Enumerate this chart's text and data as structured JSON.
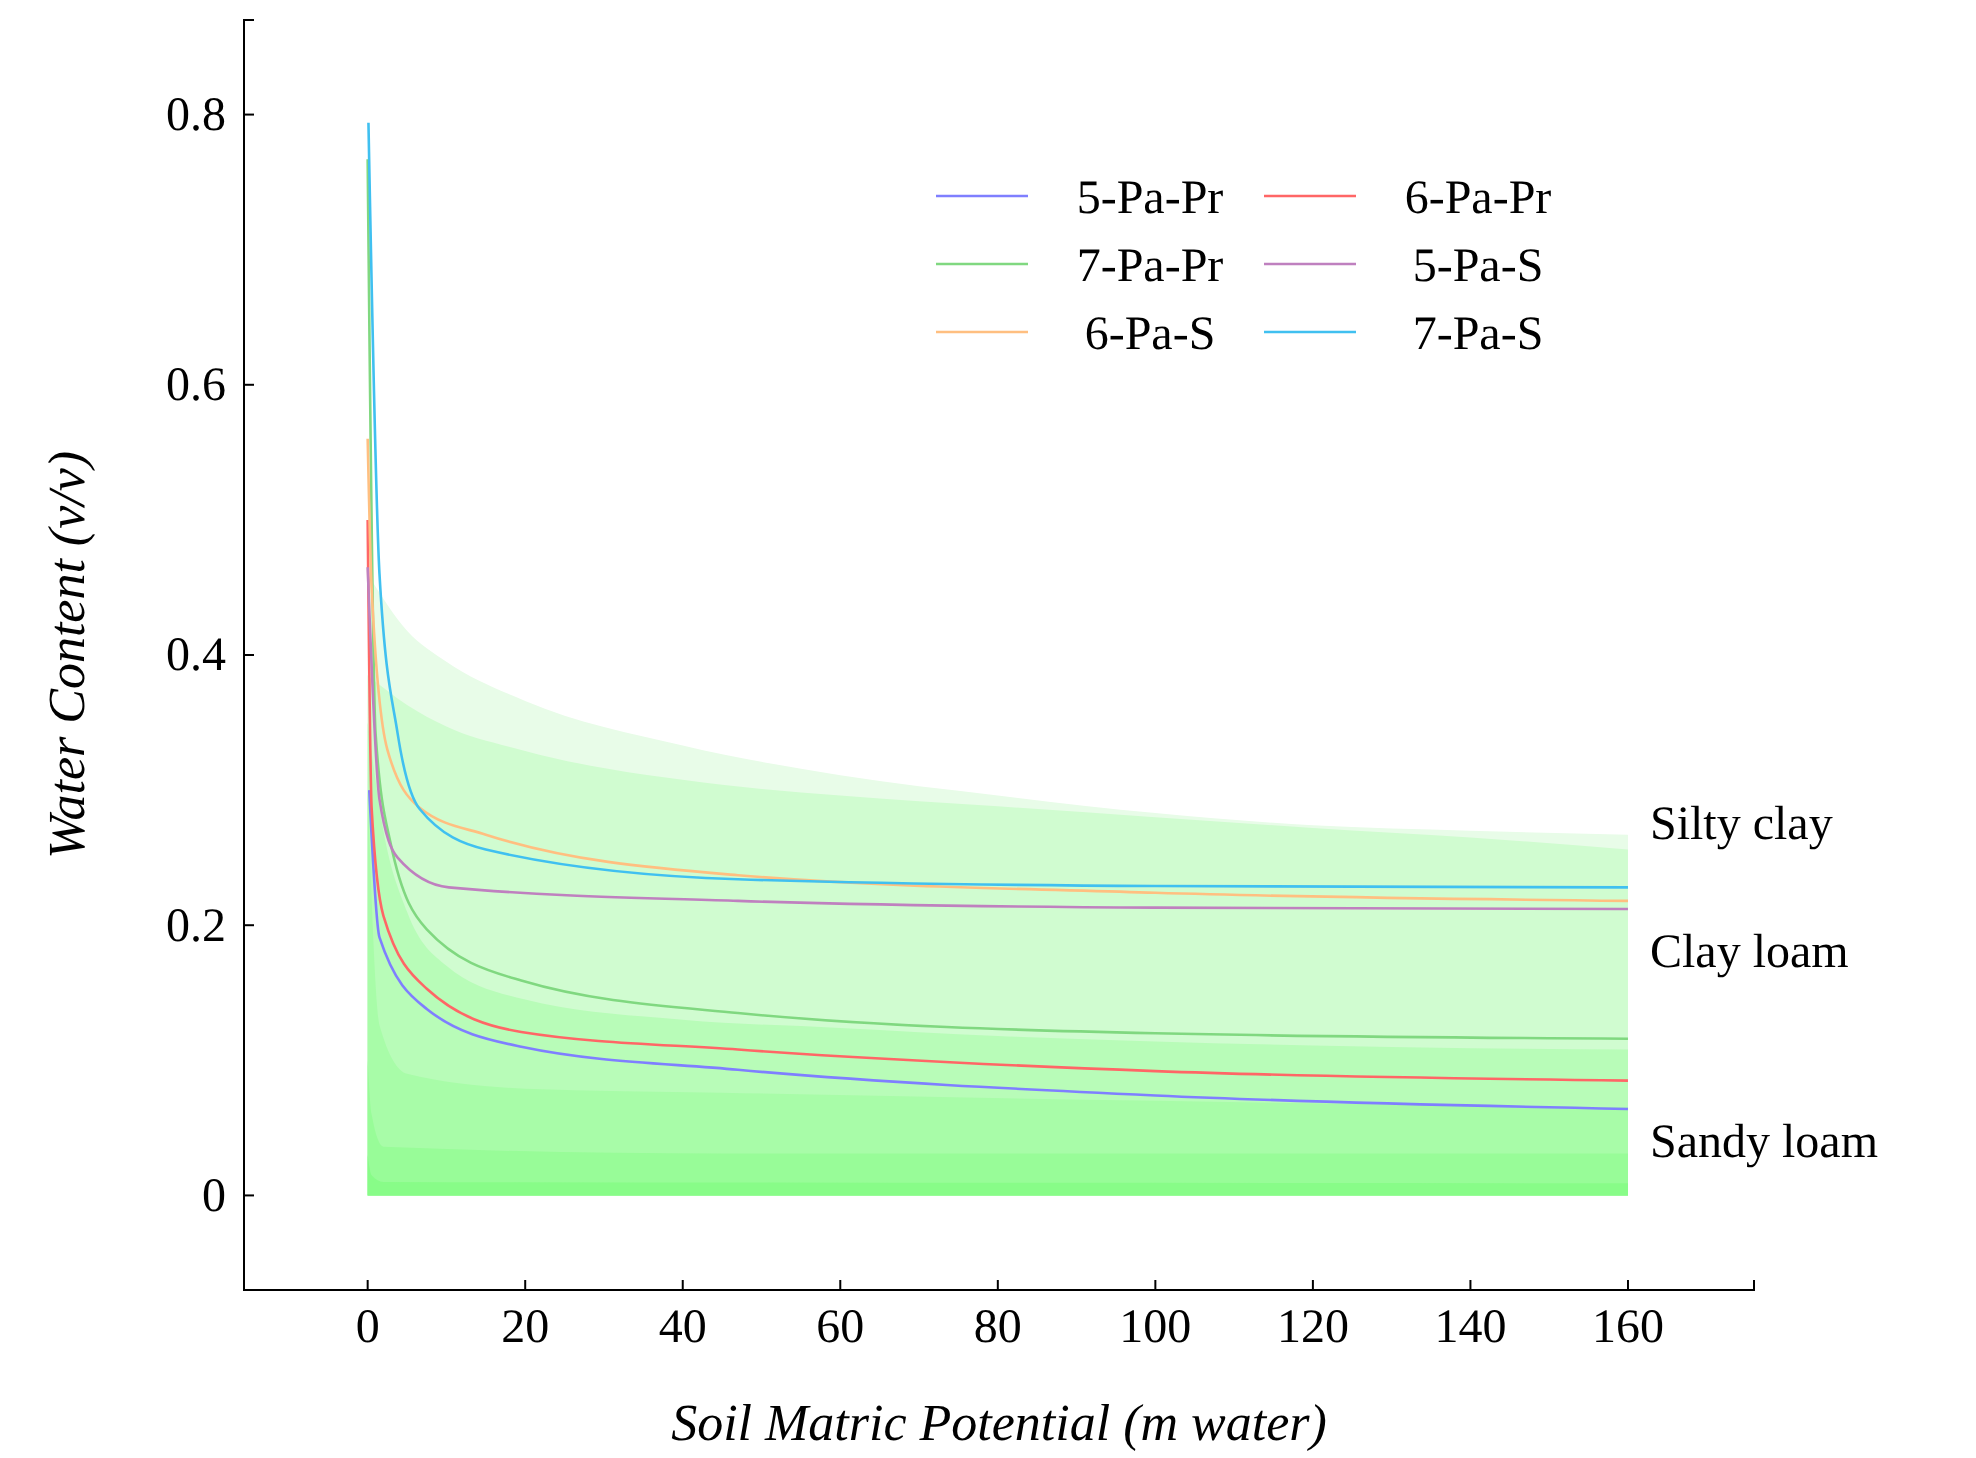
{
  "chart_data": {
    "type": "line",
    "xlabel": "Soil Matric Potential (m water)",
    "ylabel": "Water Content (v/v)",
    "xlim": [
      -15.7,
      176
    ],
    "ylim": [
      -0.07,
      0.87
    ],
    "xticks": [
      0,
      20,
      40,
      60,
      80,
      100,
      120,
      140,
      160
    ],
    "yticks": [
      0,
      0.2,
      0.4,
      0.6,
      0.8
    ],
    "grid": false,
    "legend": "top right",
    "line_style": "solid",
    "marker": "none",
    "annotations": [
      "Silty clay",
      "Clay loam",
      "Sandy loam"
    ],
    "series": [
      {
        "type": "area",
        "color": "#e8fce8",
        "x": [
          0,
          5,
          10,
          20,
          40,
          60,
          80,
          100,
          120,
          140,
          160
        ],
        "values": [
          0.46,
          0.418,
          0.395,
          0.366,
          0.333,
          0.311,
          0.296,
          0.283,
          0.274,
          0.27,
          0.267
        ]
      },
      {
        "type": "area",
        "color": "#d0fcd0",
        "x": [
          0,
          5,
          10,
          20,
          45,
          60,
          80,
          100,
          120,
          140,
          160
        ],
        "values": [
          0.385,
          0.363,
          0.347,
          0.329,
          0.304,
          0.296,
          0.288,
          0.28,
          0.272,
          0.265,
          0.256
        ]
      },
      {
        "type": "area",
        "color": "#b8fcb8",
        "x": [
          0,
          2,
          5,
          10,
          20,
          40,
          60,
          80,
          100,
          120,
          140,
          160
        ],
        "values": [
          0.35,
          0.27,
          0.21,
          0.17,
          0.145,
          0.13,
          0.124,
          0.118,
          0.114,
          0.111,
          0.109,
          0.108
        ]
      },
      {
        "type": "area",
        "color": "#a8fca8",
        "x": [
          0,
          1.5,
          5,
          20,
          45,
          100,
          160
        ],
        "values": [
          0.3,
          0.126,
          0.09,
          0.079,
          0.076,
          0.07,
          0.065
        ]
      },
      {
        "type": "area",
        "color": "#98fc98",
        "x": [
          0,
          0.5,
          2,
          45,
          160
        ],
        "values": [
          0.1,
          0.06,
          0.036,
          0.031,
          0.031
        ]
      },
      {
        "type": "area",
        "color": "#88fc88",
        "x": [
          0,
          0.5,
          2,
          160
        ],
        "values": [
          0.03,
          0.015,
          0.01,
          0.009
        ]
      },
      {
        "name": "5-Pa-Pr",
        "color": "#7f7fff",
        "x": [
          0.2,
          1.5,
          7.5,
          19.5,
          47,
          100,
          160
        ],
        "values": [
          0.3,
          0.191,
          0.138,
          0.11,
          0.093,
          0.074,
          0.064
        ]
      },
      {
        "name": "6-Pa-Pr",
        "color": "#ff6666",
        "x": [
          0,
          0.5,
          2,
          7.5,
          19.5,
          47,
          100,
          160
        ],
        "values": [
          0.5,
          0.287,
          0.207,
          0.153,
          0.121,
          0.108,
          0.092,
          0.085
        ]
      },
      {
        "name": "7-Pa-Pr",
        "color": "#80d880",
        "x": [
          0,
          1,
          2.9,
          7.5,
          19.5,
          47,
          100,
          160
        ],
        "values": [
          0.767,
          0.342,
          0.261,
          0.197,
          0.159,
          0.135,
          0.12,
          0.116
        ]
      },
      {
        "name": "5-Pa-S",
        "color": "#bf80bf",
        "x": [
          0,
          1.5,
          3.8,
          10.3,
          47,
          100,
          160
        ],
        "values": [
          0.465,
          0.293,
          0.25,
          0.228,
          0.218,
          0.213,
          0.212
        ]
      },
      {
        "name": "6-Pa-S",
        "color": "#ffbf80",
        "x": [
          0,
          0.5,
          2.5,
          6.6,
          15,
          47,
          100,
          160
        ],
        "values": [
          0.56,
          0.45,
          0.33,
          0.287,
          0.267,
          0.237,
          0.224,
          0.218
        ]
      },
      {
        "name": "7-Pa-S",
        "color": "#40c0f0",
        "x": [
          0.1,
          1.5,
          3.8,
          6.6,
          15,
          47,
          100,
          160
        ],
        "values": [
          0.794,
          0.46,
          0.342,
          0.286,
          0.256,
          0.234,
          0.229,
          0.228
        ]
      }
    ]
  }
}
